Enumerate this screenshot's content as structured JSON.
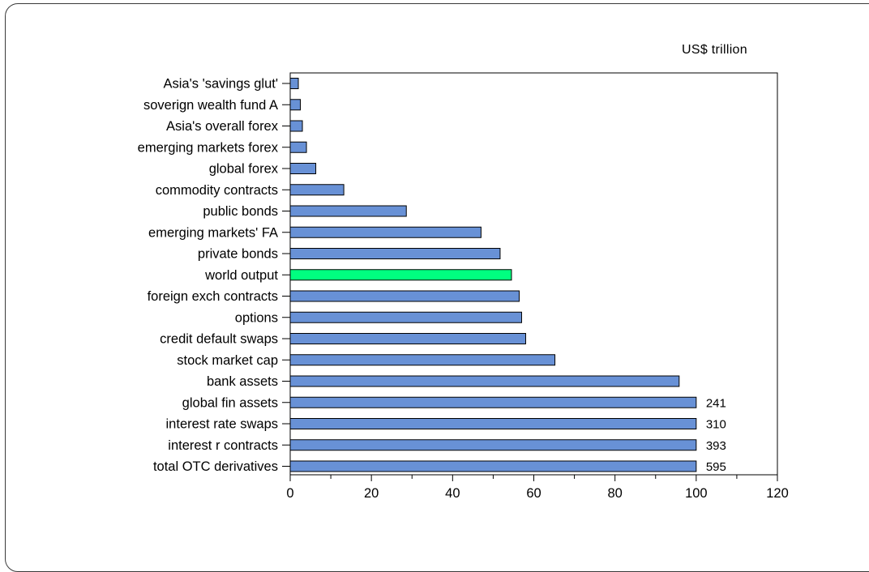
{
  "chart_data": {
    "type": "bar",
    "orientation": "horizontal",
    "unit_label": "US$ trillion",
    "categories": [
      "Asia's 'savings glut'",
      "soverign wealth fund A",
      "Asia's overall forex",
      "emerging markets forex",
      "global forex",
      "commodity contracts",
      "public bonds",
      "emerging markets' FA",
      "private bonds",
      "world output",
      "foreign exch contracts",
      "options",
      "credit default swaps",
      "stock market cap",
      "bank assets",
      "global fin assets",
      "interest rate swaps",
      "interest r contracts",
      "total OTC derivatives"
    ],
    "values": [
      2,
      2.5,
      3,
      4,
      6.3,
      13.2,
      28.6,
      47,
      51.7,
      54.5,
      56.4,
      57,
      58,
      65.2,
      95.8,
      100,
      100,
      100,
      100
    ],
    "data_labels": [
      "",
      "",
      "",
      "",
      "",
      "",
      "",
      "",
      "",
      "",
      "",
      "",
      "",
      "",
      "",
      "241",
      "310",
      "393",
      "595"
    ],
    "highlight_category": "world output",
    "colors": {
      "bar": "#6891d6",
      "highlight": "#00ff80",
      "stroke": "#000000"
    },
    "xlim": [
      0,
      120
    ],
    "xticks": [
      0,
      20,
      40,
      60,
      80,
      100,
      120
    ],
    "xlabel": "",
    "ylabel": "",
    "grid": false
  }
}
